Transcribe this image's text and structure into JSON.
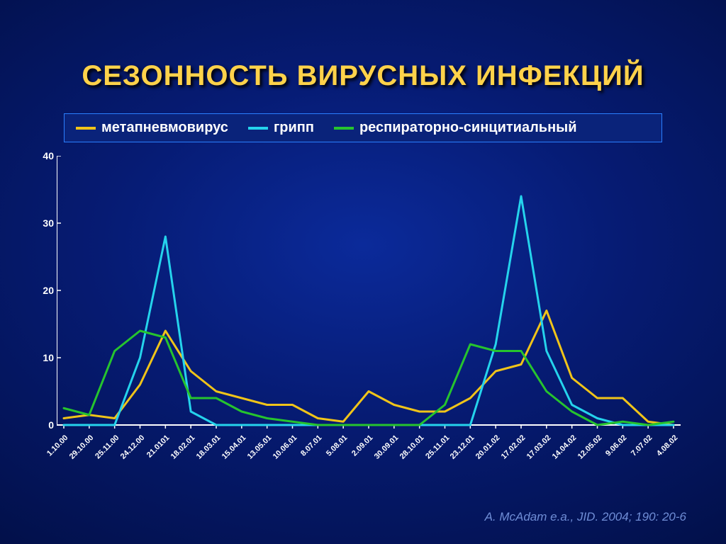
{
  "title": "СЕЗОННОСТЬ ВИРУСНЫХ ИНФЕКЦИЙ",
  "citation": "A. McAdam e.a., JID. 2004; 190: 20-6",
  "chart": {
    "type": "line",
    "background_gradient": [
      "#0b2a9a",
      "#061b73",
      "#02104a"
    ],
    "title_color": "#ffd24a",
    "title_fontsize": 40,
    "axis_color": "#ffffff",
    "label_color": "#ffffff",
    "label_fontsize": 14,
    "xlabel_fontsize": 11,
    "line_width": 3,
    "ylim": [
      0,
      40
    ],
    "ytick_step": 10,
    "yticks": [
      0,
      10,
      20,
      30,
      40
    ],
    "categories": [
      "1.10.00",
      "29.10.00",
      "25.11.00",
      "24.12.00",
      "21.0101",
      "18.02.01",
      "18.03.01",
      "15.04.01",
      "13.05.01",
      "10.06.01",
      "8.07.01",
      "5.08.01",
      "2.09.01",
      "30.09.01",
      "28.10.01",
      "25.11.01",
      "23.12.01",
      "20.01.02",
      "17.02.02",
      "17.03.02",
      "14.04.02",
      "12.05.02",
      "9.06.02",
      "7.07.02",
      "4.08.02"
    ],
    "series": [
      {
        "id": "metapneumo",
        "name": "метапневмовирус",
        "color": "#f0c419",
        "values": [
          1,
          1.5,
          1,
          6,
          14,
          8,
          5,
          4,
          3,
          3,
          1,
          0.5,
          5,
          3,
          2,
          2,
          4,
          8,
          9,
          17,
          7,
          4,
          4,
          0.5,
          0
        ]
      },
      {
        "id": "flu",
        "name": "грипп",
        "color": "#25d3ec",
        "values": [
          0,
          0,
          0,
          10,
          28,
          2,
          0,
          0,
          0,
          0,
          0,
          0,
          0,
          0,
          0,
          0,
          0,
          12,
          34,
          11,
          3,
          1,
          0,
          0,
          0
        ]
      },
      {
        "id": "rsv",
        "name": "респираторно-синцитиальный",
        "color": "#26c42e",
        "values": [
          2.5,
          1.5,
          11,
          14,
          13,
          4,
          4,
          2,
          1,
          0.5,
          0,
          0,
          0,
          0,
          0,
          3,
          12,
          11,
          11,
          5,
          2,
          0,
          0.5,
          0,
          0.5
        ]
      }
    ]
  }
}
